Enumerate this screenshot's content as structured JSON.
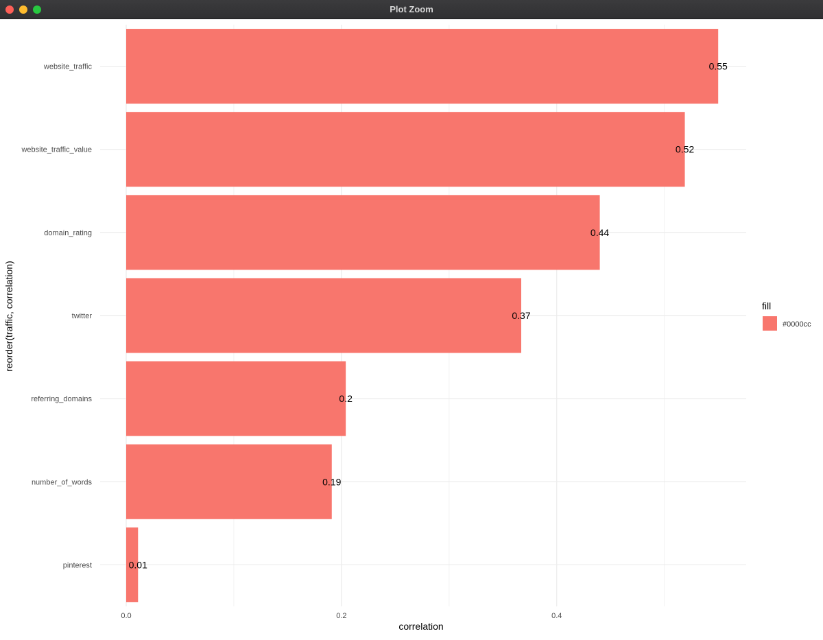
{
  "window": {
    "title": "Plot Zoom"
  },
  "chart_data": {
    "type": "bar",
    "orientation": "horizontal",
    "categories": [
      "website_traffic",
      "website_traffic_value",
      "domain_rating",
      "twitter",
      "referring_domains",
      "number_of_words",
      "pinterest"
    ],
    "values": [
      0.55,
      0.52,
      0.44,
      0.37,
      0.2,
      0.19,
      0.01
    ],
    "data_labels": [
      "0.55",
      "0.52",
      "0.44",
      "0.37",
      "0.2",
      "0.19",
      "0.01"
    ],
    "bar_values": [
      0.55,
      0.519,
      0.44,
      0.367,
      0.204,
      0.191,
      0.011
    ],
    "xlabel": "correlation",
    "ylabel": "reorder(traffic, correlation)",
    "xticks": [
      0.0,
      0.2,
      0.4
    ],
    "xtick_labels": [
      "0.0",
      "0.2",
      "0.4"
    ],
    "xlim": [
      0,
      0.576
    ],
    "grid": true,
    "bar_color": "#f8766d",
    "legend": {
      "title": "fill",
      "entries": [
        {
          "label": "#0000cc",
          "color": "#f8766d"
        }
      ],
      "position": "right"
    }
  }
}
